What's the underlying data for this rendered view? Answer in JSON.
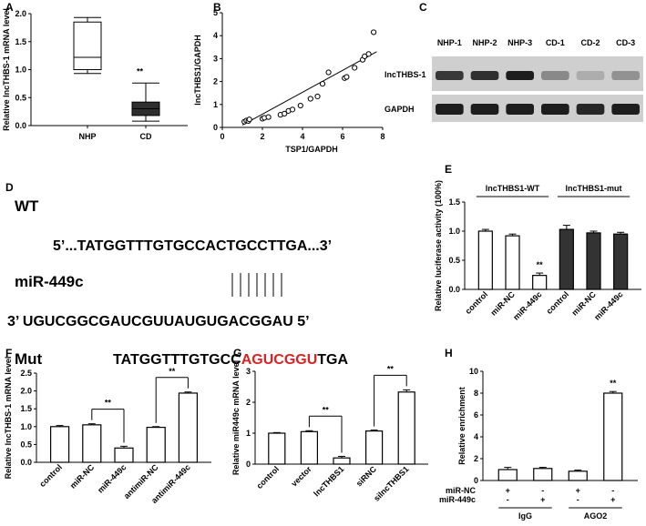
{
  "panel_letters": [
    "A",
    "B",
    "C",
    "D",
    "E",
    "F",
    "G",
    "H"
  ],
  "chart_data": [
    {
      "id": "A",
      "type": "box",
      "ylabel": "Relative lncTHBS-1 mRNA level",
      "ylim": [
        0,
        2
      ],
      "yticks": [
        "0.0",
        "0.5",
        "1.0",
        "1.5",
        "2.0"
      ],
      "categories": [
        "NHP",
        "CD"
      ],
      "boxes": [
        {
          "name": "NHP",
          "min": 0.93,
          "q1": 1.0,
          "median": 1.22,
          "q3": 1.85,
          "max": 1.93,
          "fill": "#ffffff"
        },
        {
          "name": "CD",
          "min": 0.08,
          "q1": 0.18,
          "median": 0.3,
          "q3": 0.42,
          "max": 0.76,
          "fill": "#2e2e2e"
        }
      ],
      "annotations": [
        {
          "category": "CD",
          "text": "**"
        }
      ]
    },
    {
      "id": "B",
      "type": "scatter",
      "xlabel": "TSP1/GAPDH",
      "ylabel": "lncTHBS1/GAPDH",
      "xlim": [
        0,
        8
      ],
      "ylim": [
        0,
        5
      ],
      "xticks": [
        "0",
        "2",
        "4",
        "6",
        "8"
      ],
      "yticks": [
        "0",
        "1",
        "2",
        "3",
        "4",
        "5"
      ],
      "points": [
        [
          1.1,
          0.25
        ],
        [
          1.2,
          0.3
        ],
        [
          1.3,
          0.28
        ],
        [
          1.35,
          0.35
        ],
        [
          2.0,
          0.38
        ],
        [
          2.1,
          0.42
        ],
        [
          2.3,
          0.45
        ],
        [
          2.9,
          0.55
        ],
        [
          3.1,
          0.6
        ],
        [
          3.3,
          0.72
        ],
        [
          3.5,
          0.78
        ],
        [
          3.9,
          0.95
        ],
        [
          4.4,
          1.25
        ],
        [
          4.75,
          1.35
        ],
        [
          5.0,
          1.9
        ],
        [
          5.3,
          2.4
        ],
        [
          6.1,
          2.15
        ],
        [
          6.2,
          2.2
        ],
        [
          6.6,
          2.6
        ],
        [
          7.0,
          2.95
        ],
        [
          7.1,
          3.1
        ],
        [
          7.3,
          3.2
        ],
        [
          7.55,
          4.15
        ]
      ],
      "fit": {
        "x": [
          1.0,
          7.7
        ],
        "y": [
          0.1,
          3.3
        ]
      }
    },
    {
      "id": "E",
      "type": "bar",
      "ylabel": "Relative luciferase activity (100%)",
      "ylim": [
        0,
        1.5
      ],
      "yticks": [
        "0.0",
        "0.5",
        "1.0",
        "1.5"
      ],
      "groups": [
        "lncTHBS1-WT",
        "lncTHBS1-mut"
      ],
      "categories": [
        "control",
        "miR-NC",
        "miR-449c",
        "control",
        "miR-NC",
        "miR-449c"
      ],
      "values": [
        1.0,
        0.92,
        0.24,
        1.03,
        0.97,
        0.95
      ],
      "errors": [
        0.03,
        0.03,
        0.04,
        0.07,
        0.03,
        0.03
      ],
      "fills": [
        "#ffffff",
        "#ffffff",
        "#ffffff",
        "#333333",
        "#333333",
        "#333333"
      ],
      "annotations": [
        {
          "index": 2,
          "text": "**"
        }
      ]
    },
    {
      "id": "F",
      "type": "bar",
      "ylabel": "Relative lncTHBS-1 mRNA level",
      "ylim": [
        0,
        2.5
      ],
      "yticks": [
        "0.0",
        "0.5",
        "1.0",
        "1.5",
        "2.0",
        "2.5"
      ],
      "categories": [
        "control",
        "miR-NC",
        "miR-449c",
        "antimiR-NC",
        "antimiR-449c"
      ],
      "values": [
        1.0,
        1.05,
        0.4,
        0.98,
        1.94
      ],
      "errors": [
        0.03,
        0.03,
        0.05,
        0.02,
        0.03
      ],
      "brackets": [
        {
          "from": 1,
          "to": 2,
          "text": "**"
        },
        {
          "from": 3,
          "to": 4,
          "text": "**"
        }
      ]
    },
    {
      "id": "G",
      "type": "bar",
      "ylabel": "Relative miR449c mRNA level",
      "ylim": [
        0,
        3
      ],
      "yticks": [
        "0",
        "1",
        "2",
        "3"
      ],
      "categories": [
        "control",
        "vector",
        "lncTHBS1",
        "siRNC",
        "silncTHBS1"
      ],
      "values": [
        1.0,
        1.05,
        0.2,
        1.07,
        2.33
      ],
      "errors": [
        0.02,
        0.03,
        0.05,
        0.03,
        0.07
      ],
      "brackets": [
        {
          "from": 1,
          "to": 2,
          "text": "**"
        },
        {
          "from": 3,
          "to": 4,
          "text": "**"
        }
      ]
    },
    {
      "id": "H",
      "type": "bar",
      "ylabel": "Relative enrichment",
      "ylim": [
        0,
        10
      ],
      "yticks": [
        "0",
        "2",
        "4",
        "6",
        "8",
        "10"
      ],
      "values": [
        1.0,
        1.1,
        0.85,
        8.0
      ],
      "errors": [
        0.2,
        0.1,
        0.1,
        0.15
      ],
      "row_labels": [
        "miR-NC",
        "miR-449c"
      ],
      "row_marks": [
        [
          "+",
          "-",
          "+",
          "-"
        ],
        [
          "-",
          "+",
          "-",
          "+"
        ]
      ],
      "groups": [
        "IgG",
        "AGO2"
      ],
      "annotations": [
        {
          "index": 3,
          "text": "**"
        }
      ]
    }
  ],
  "blot": {
    "lanes": [
      "NHP-1",
      "NHP-2",
      "NHP-3",
      "CD-1",
      "CD-2",
      "CD-3"
    ],
    "rows": [
      "lncTHBS-1",
      "GAPDH"
    ],
    "intensity": [
      [
        0.8,
        0.85,
        0.95,
        0.35,
        0.15,
        0.3
      ],
      [
        0.95,
        0.95,
        0.95,
        0.95,
        0.9,
        0.95
      ]
    ]
  },
  "sequence": {
    "wt_label": "WT",
    "wt_seq": "5’...TATGGTTTGTGCCACTGCCTTGA...3’",
    "mir_label": "miR-449c",
    "mir_seq": "3’ UGUCGGCGAUCGUUAUGUGACGGAU 5’",
    "mut_label": "Mut",
    "mut_prefix": "TATGGTTTGTGCC",
    "mut_highlight": "AGUCGGU",
    "mut_suffix": "TGA",
    "highlight_color": "#e02020"
  }
}
